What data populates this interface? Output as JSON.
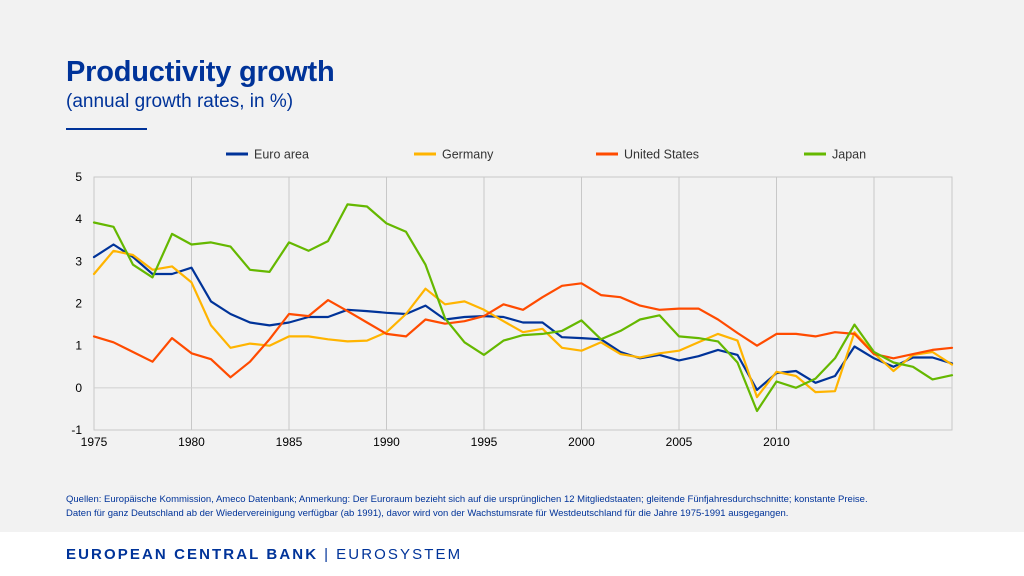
{
  "header": {
    "title": "Productivity growth",
    "subtitle": "(annual growth rates, in %)"
  },
  "source_note": {
    "line1": "Quellen: Europäische Kommission, Ameco Datenbank; Anmerkung: Der Euroraum bezieht sich auf die ursprünglichen 12 Mitgliedstaaten; gleitende Fünfjahresdurchschnitte; konstante Preise.",
    "line2": "Daten für  ganz Deutschland ab der Wiedervereinigung verfügbar (ab 1991), davor wird von der Wachstumsrate für Westdeutschland für die Jahre 1975-1991 ausgegangen."
  },
  "footer": {
    "brand": "EUROPEAN CENTRAL BANK",
    "separator": "|",
    "system": "EUROSYSTEM"
  },
  "chart_data": {
    "type": "line",
    "title": "Productivity growth",
    "xlabel": "",
    "ylabel": "",
    "xlim": [
      1975,
      2019
    ],
    "ylim": [
      -1,
      5
    ],
    "x_ticks": [
      1975,
      1980,
      1985,
      1990,
      1995,
      2000,
      2005,
      2010
    ],
    "y_ticks": [
      -1,
      0,
      1,
      2,
      3,
      4,
      5
    ],
    "grid": "vertical-every-5-years",
    "legend_position": "top",
    "x": [
      1975,
      1976,
      1977,
      1978,
      1979,
      1980,
      1981,
      1982,
      1983,
      1984,
      1985,
      1986,
      1987,
      1988,
      1989,
      1990,
      1991,
      1992,
      1993,
      1994,
      1995,
      1996,
      1997,
      1998,
      1999,
      2000,
      2001,
      2002,
      2003,
      2004,
      2005,
      2006,
      2007,
      2008,
      2009,
      2010,
      2011,
      2012,
      2013,
      2014,
      2015,
      2016,
      2017,
      2018,
      2019
    ],
    "series": [
      {
        "name": "Euro area",
        "color": "#003399",
        "values": [
          3.1,
          3.4,
          3.1,
          2.7,
          2.7,
          2.85,
          2.05,
          1.75,
          1.55,
          1.48,
          1.55,
          1.68,
          1.68,
          1.85,
          1.82,
          1.78,
          1.75,
          1.95,
          1.62,
          1.68,
          1.7,
          1.68,
          1.55,
          1.55,
          1.2,
          1.18,
          1.15,
          0.85,
          0.7,
          0.78,
          0.65,
          0.75,
          0.9,
          0.78,
          -0.05,
          0.35,
          0.4,
          0.12,
          0.28,
          0.98,
          0.7,
          0.5,
          0.72,
          0.72,
          0.58
        ]
      },
      {
        "name": "Germany",
        "color": "#ffb400",
        "values": [
          2.7,
          3.25,
          3.15,
          2.8,
          2.88,
          2.5,
          1.48,
          0.95,
          1.05,
          1.0,
          1.22,
          1.22,
          1.15,
          1.1,
          1.12,
          1.32,
          1.75,
          2.35,
          1.98,
          2.05,
          1.85,
          1.58,
          1.32,
          1.4,
          0.95,
          0.88,
          1.08,
          0.8,
          0.72,
          0.82,
          0.88,
          1.08,
          1.28,
          1.12,
          -0.22,
          0.38,
          0.28,
          -0.1,
          -0.08,
          1.32,
          0.82,
          0.4,
          0.78,
          0.85,
          0.55
        ]
      },
      {
        "name": "United States",
        "color": "#ff4b00",
        "values": [
          1.22,
          1.08,
          0.85,
          0.62,
          1.18,
          0.82,
          0.68,
          0.25,
          0.62,
          1.15,
          1.75,
          1.7,
          2.08,
          1.82,
          1.55,
          1.28,
          1.22,
          1.62,
          1.52,
          1.58,
          1.7,
          1.98,
          1.85,
          2.15,
          2.42,
          2.48,
          2.2,
          2.15,
          1.95,
          1.85,
          1.88,
          1.88,
          1.62,
          1.3,
          1.0,
          1.28,
          1.28,
          1.22,
          1.32,
          1.28,
          0.8,
          0.7,
          0.8,
          0.9,
          0.95
        ]
      },
      {
        "name": "Japan",
        "color": "#65b800",
        "values": [
          3.92,
          3.82,
          2.92,
          2.62,
          3.65,
          3.4,
          3.45,
          3.35,
          2.8,
          2.75,
          3.45,
          3.25,
          3.48,
          4.35,
          4.3,
          3.9,
          3.7,
          2.92,
          1.65,
          1.08,
          0.78,
          1.12,
          1.25,
          1.28,
          1.35,
          1.6,
          1.15,
          1.35,
          1.62,
          1.72,
          1.22,
          1.18,
          1.1,
          0.6,
          -0.55,
          0.15,
          0.0,
          0.22,
          0.7,
          1.5,
          0.85,
          0.6,
          0.5,
          0.2,
          0.3
        ]
      }
    ]
  }
}
